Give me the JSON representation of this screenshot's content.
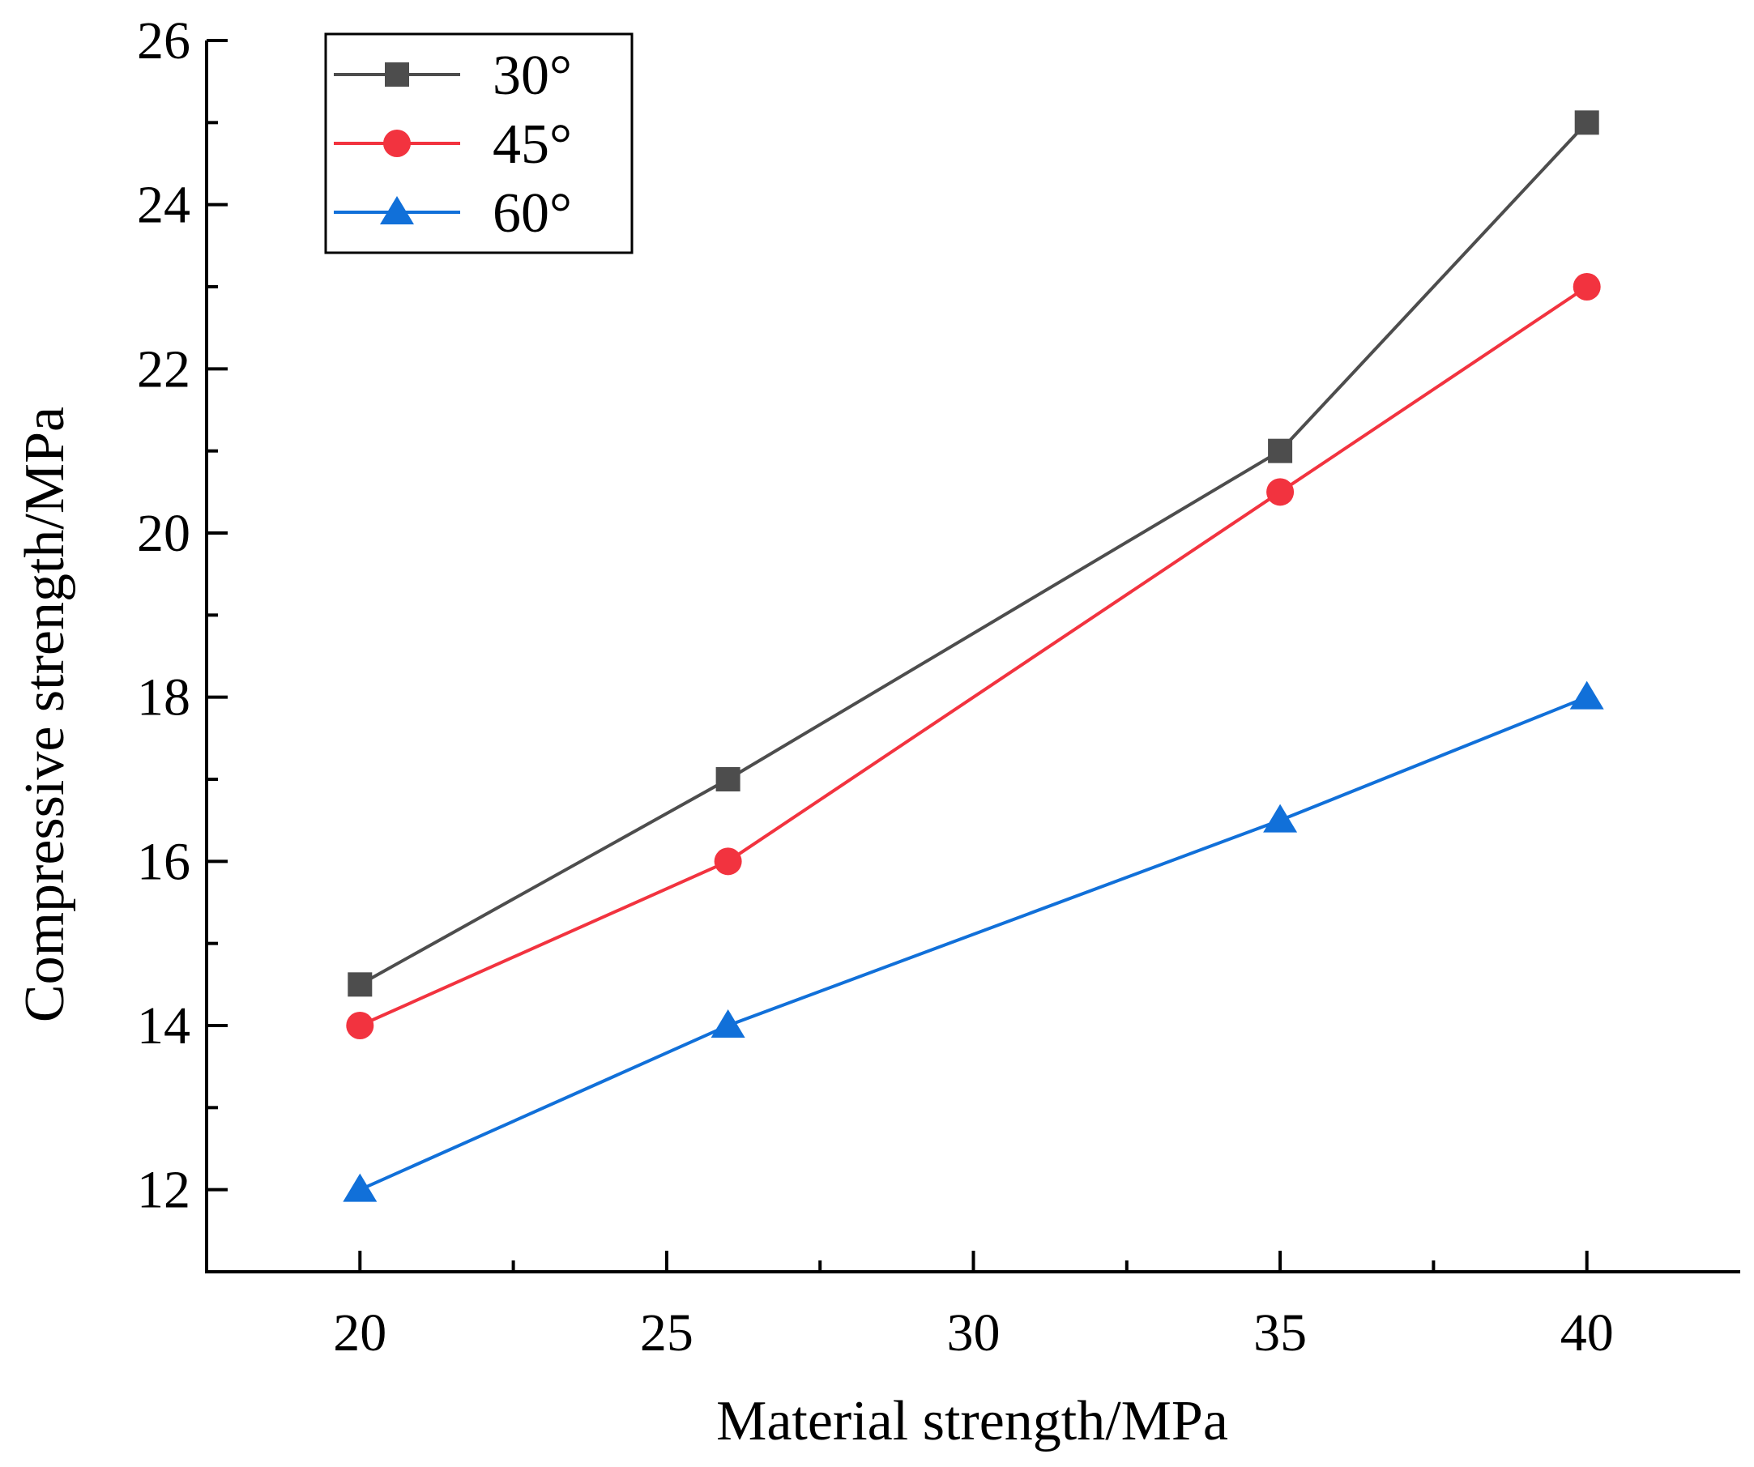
{
  "chart_data": {
    "type": "line",
    "title": "",
    "xlabel": "Material strength/MPa",
    "ylabel": "Compressive strength/MPa",
    "xlim": [
      17.5,
      42.5
    ],
    "ylim": [
      11,
      26
    ],
    "x_ticks": [
      20,
      25,
      30,
      35,
      40
    ],
    "y_ticks": [
      12,
      14,
      16,
      18,
      20,
      22,
      24,
      26
    ],
    "x_minor_ticks": [
      22.5,
      27.5,
      32.5,
      37.5
    ],
    "y_minor_ticks": [
      13,
      15,
      17,
      19,
      21,
      23,
      25
    ],
    "grid": false,
    "legend_position": "top-left",
    "series": [
      {
        "name": "30°",
        "color": "#4d4d4d",
        "marker": "square",
        "x": [
          20,
          26,
          35,
          40
        ],
        "values": [
          14.5,
          17,
          21,
          25
        ]
      },
      {
        "name": "45°",
        "color": "#f2333f",
        "marker": "circle",
        "x": [
          20,
          26,
          35,
          40
        ],
        "values": [
          14,
          16,
          20.5,
          23
        ]
      },
      {
        "name": "60°",
        "color": "#1170d9",
        "marker": "triangle",
        "x": [
          20,
          26,
          35,
          40
        ],
        "values": [
          12,
          14,
          16.5,
          18
        ]
      }
    ]
  }
}
